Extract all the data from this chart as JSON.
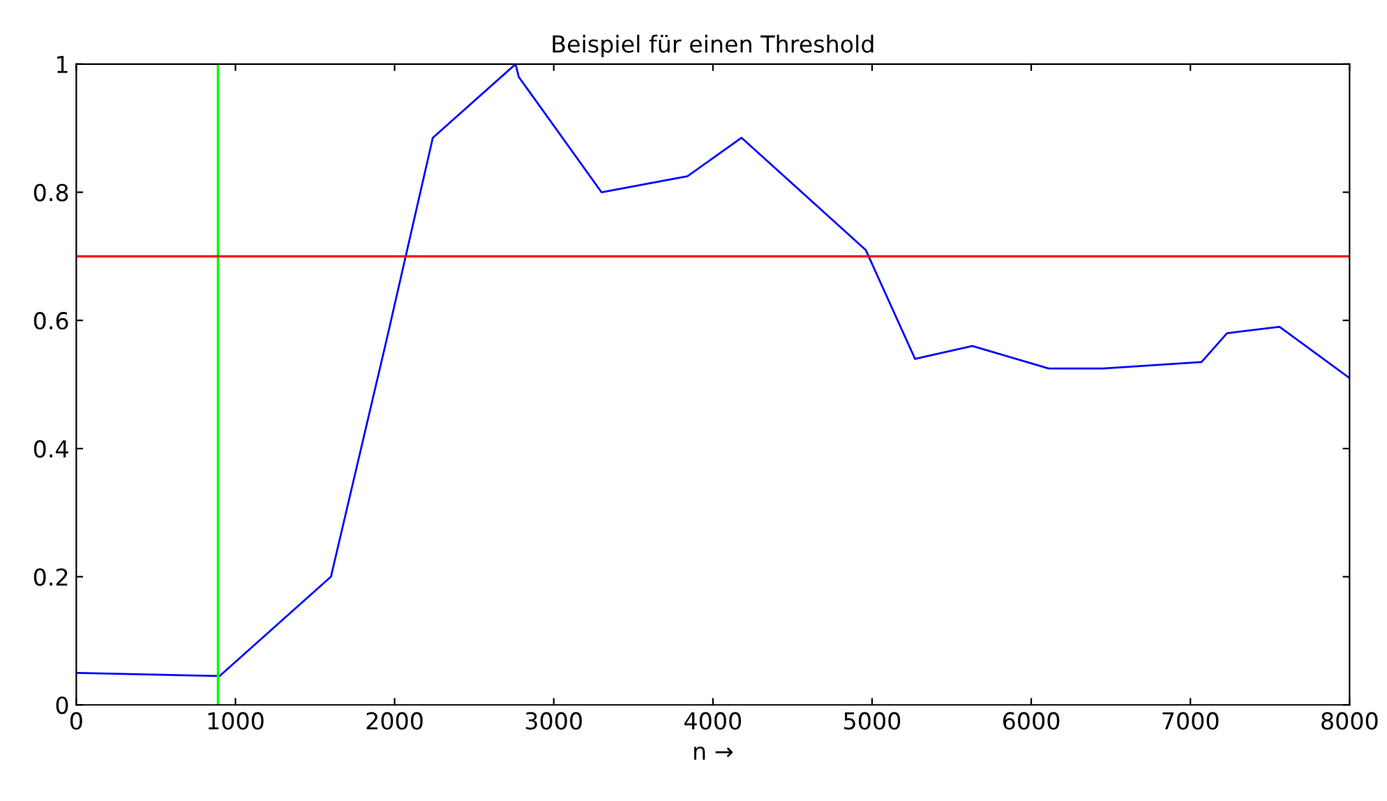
{
  "chart_data": {
    "type": "line",
    "title": "Beispiel für einen Threshold",
    "xlabel": "n →",
    "series": [
      {
        "color": "#0000ff",
        "x": [
          0,
          900,
          1600,
          1950,
          2240,
          2760,
          2780,
          3300,
          3840,
          4180,
          4960,
          5270,
          5630,
          6110,
          6450,
          7070,
          7230,
          7560,
          8000
        ],
        "values": [
          0.05,
          0.045,
          0.2,
          0.57,
          0.885,
          1.0,
          0.98,
          0.8,
          0.825,
          0.885,
          0.71,
          0.54,
          0.56,
          0.525,
          0.525,
          0.535,
          0.58,
          0.59,
          0.51
        ]
      }
    ],
    "ref_lines": [
      {
        "axis": "x",
        "value": 890,
        "color": "#00ff00"
      },
      {
        "axis": "y",
        "value": 0.7,
        "color": "#ff0000"
      }
    ],
    "xlim": [
      0,
      8000
    ],
    "xticks": [
      0,
      1000,
      2000,
      3000,
      4000,
      5000,
      6000,
      7000,
      8000
    ],
    "ylim": [
      0,
      1
    ],
    "yticks": [
      0,
      0.2,
      0.4,
      0.6,
      0.8,
      1
    ],
    "grid": false
  }
}
